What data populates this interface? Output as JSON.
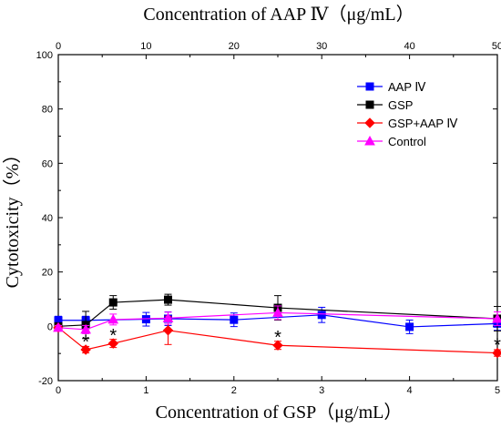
{
  "chart_data": {
    "type": "line",
    "top_xlabel": "Concentration of AAP Ⅳ（μg/mL）",
    "xlabel": "Concentration of GSP（μg/mL）",
    "ylabel": "Cytotoxicity（%）",
    "xlim": [
      0,
      5
    ],
    "top_xlim": [
      0,
      50
    ],
    "ylim": [
      -20,
      100
    ],
    "x_ticks": [
      0,
      1,
      2,
      3,
      4,
      5
    ],
    "top_x_ticks": [
      0,
      10,
      20,
      30,
      40,
      50
    ],
    "y_ticks": [
      -20,
      0,
      20,
      40,
      60,
      80,
      100
    ],
    "legend_position": "top-right",
    "significance_marker": "*",
    "significance_x": [
      0.3125,
      0.625,
      2.5,
      5
    ],
    "series": [
      {
        "name": "AAP Ⅳ",
        "color": "#0000ff",
        "marker": "square",
        "x": [
          0,
          0.3125,
          1,
          1.25,
          2,
          3,
          4,
          5
        ],
        "y": [
          2.2,
          2.2,
          2.6,
          2.8,
          2.4,
          4.2,
          -0.2,
          1.0
        ],
        "err": [
          1.5,
          1.5,
          2.5,
          2.5,
          2.5,
          2.8,
          2.5,
          2.5
        ]
      },
      {
        "name": "GSP",
        "color": "#000000",
        "marker": "square",
        "x": [
          0,
          0.3125,
          0.625,
          1.25,
          2.5,
          5
        ],
        "y": [
          0,
          0.5,
          8.8,
          9.8,
          6.8,
          2.8
        ],
        "err": [
          1,
          5.0,
          2.5,
          2.0,
          4.5,
          4.5
        ]
      },
      {
        "name": "GSP+AAP Ⅳ",
        "color": "#ff0000",
        "marker": "diamond",
        "x": [
          0,
          0.3125,
          0.625,
          1.25,
          2.5,
          5
        ],
        "y": [
          -0.5,
          -8.6,
          -6.3,
          -1.5,
          -7.0,
          -9.8
        ],
        "err": [
          0.8,
          1.2,
          1.5,
          5.2,
          1.5,
          1.2
        ]
      },
      {
        "name": "Control",
        "color": "#ff00ff",
        "marker": "triangle",
        "x": [
          0,
          0.3125,
          0.625,
          1.25,
          2.5,
          5
        ],
        "y": [
          -0.5,
          -1.2,
          2.5,
          3.0,
          5.0,
          2.8
        ],
        "err": [
          0.8,
          1.5,
          2.0,
          2.2,
          2.5,
          2.5
        ]
      }
    ]
  }
}
